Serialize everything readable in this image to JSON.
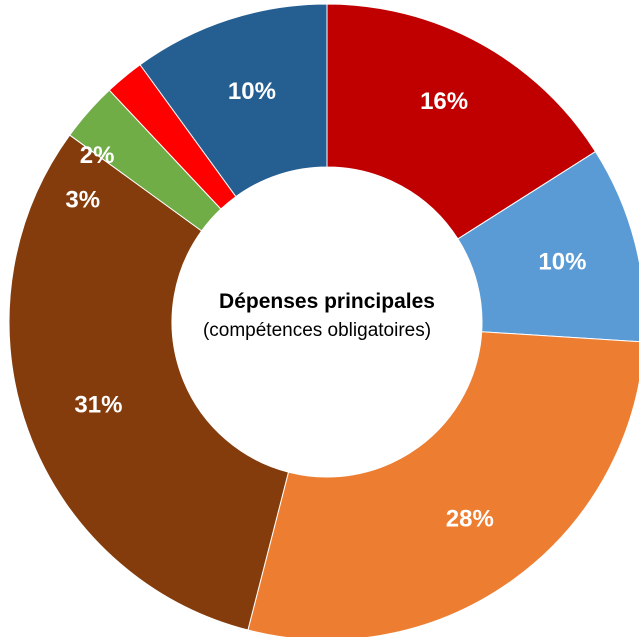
{
  "chart_data": {
    "type": "pie",
    "center_title": "Dépenses principales",
    "center_subtitle": "(compétences obligatoires)",
    "slices": [
      {
        "label": "16%",
        "value": 16,
        "color": "#c00000"
      },
      {
        "label": "10%",
        "value": 10,
        "color": "#5b9bd5"
      },
      {
        "label": "28%",
        "value": 28,
        "color": "#ed7d31"
      },
      {
        "label": "31%",
        "value": 31,
        "color": "#843c0c"
      },
      {
        "label": "3%",
        "value": 3,
        "color": "#70ad47"
      },
      {
        "label": "2%",
        "value": 2,
        "color": "#ff0000"
      },
      {
        "label": "10%",
        "value": 10,
        "color": "#255e91"
      }
    ]
  }
}
